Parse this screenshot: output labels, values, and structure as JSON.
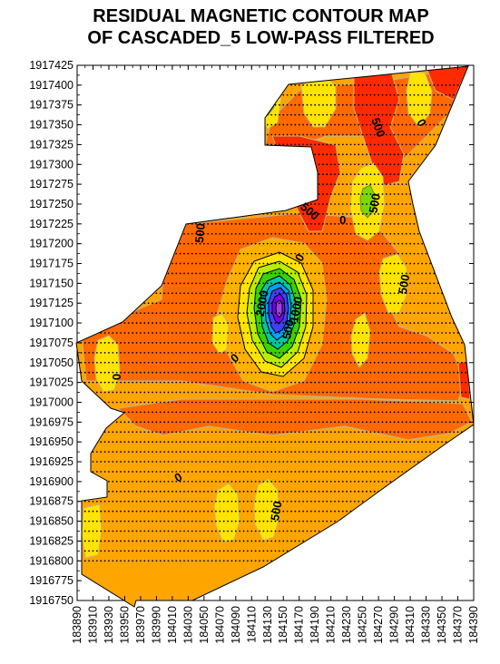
{
  "title_line1": "RESIDUAL MAGNETIC CONTOUR MAP",
  "title_line2": "OF CASCADED_5 LOW-PASS FILTERED",
  "chart_data": {
    "type": "contour",
    "title": "RESIDUAL MAGNETIC CONTOUR MAP OF CASCADED_5 LOW-PASS FILTERED",
    "xlabel": "",
    "ylabel": "",
    "xlim": [
      183890,
      184390
    ],
    "ylim": [
      1916750,
      1917425
    ],
    "x_ticks": [
      "183890",
      "183910",
      "183930",
      "183950",
      "183970",
      "183990",
      "184010",
      "184030",
      "184050",
      "184070",
      "184090",
      "184110",
      "184130",
      "184150",
      "184170",
      "184190",
      "184210",
      "184230",
      "184250",
      "184270",
      "184290",
      "184310",
      "184330",
      "184350",
      "184370",
      "184390"
    ],
    "y_ticks": [
      "1917425",
      "1917400",
      "1917375",
      "1917350",
      "1917325",
      "1917300",
      "1917275",
      "1917250",
      "1917225",
      "1917200",
      "1917175",
      "1917150",
      "1917125",
      "1917100",
      "1917075",
      "1917050",
      "1917025",
      "1917000",
      "1916975",
      "1916950",
      "1916925",
      "1916900",
      "1916875",
      "1916850",
      "1916825",
      "1916800",
      "1916775",
      "1916750"
    ],
    "contour_labels": [
      {
        "text": "500",
        "x": 184265,
        "y": 1917345,
        "rot": 70
      },
      {
        "text": "0",
        "x": 184320,
        "y": 1917350,
        "rot": 60
      },
      {
        "text": "500",
        "x": 184180,
        "y": 1917237,
        "rot": 40
      },
      {
        "text": "0",
        "x": 184225,
        "y": 1917225,
        "rot": 0
      },
      {
        "text": "500",
        "x": 184270,
        "y": 1917250,
        "rot": -80
      },
      {
        "text": "500",
        "x": 184050,
        "y": 1917213,
        "rot": -85
      },
      {
        "text": "0",
        "x": 184175,
        "y": 1917180,
        "rot": -60
      },
      {
        "text": "500",
        "x": 184307,
        "y": 1917148,
        "rot": -80
      },
      {
        "text": "2000",
        "x": 184128,
        "y": 1917124,
        "rot": -80
      },
      {
        "text": "1000",
        "x": 184171,
        "y": 1917116,
        "rot": -80
      },
      {
        "text": "500",
        "x": 184161,
        "y": 1917091,
        "rot": -80
      },
      {
        "text": "0",
        "x": 184092,
        "y": 1917052,
        "rot": -40
      },
      {
        "text": "0",
        "x": 183945,
        "y": 1917032,
        "rot": -90
      },
      {
        "text": "0",
        "x": 184020,
        "y": 1916901,
        "rot": -30
      },
      {
        "text": "500",
        "x": 184146,
        "y": 1916862,
        "rot": -80
      }
    ],
    "grid": false,
    "legend": "none"
  }
}
